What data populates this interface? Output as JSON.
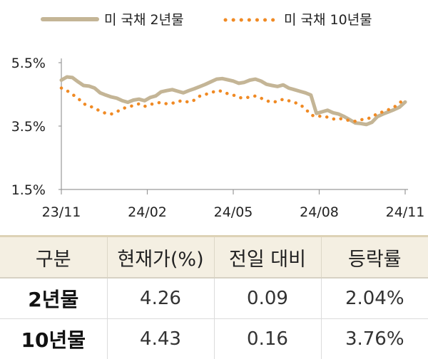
{
  "chart_data": {
    "type": "line",
    "title": "",
    "xlabel": "",
    "ylabel": "",
    "ylim": [
      1.5,
      5.5
    ],
    "yticks": [
      "1.5%",
      "3.5%",
      "5.5%"
    ],
    "xticks": [
      "23/11",
      "24/02",
      "24/05",
      "24/08",
      "24/11"
    ],
    "legend_position": "top",
    "grid": false,
    "series": [
      {
        "name": "미 국채 2년물",
        "color": "#c4b596",
        "style": "solid",
        "x": [
          0,
          2,
          4,
          6,
          8,
          10,
          12,
          14,
          16,
          18,
          20,
          22,
          24,
          26,
          28,
          30,
          32,
          34,
          36,
          38,
          40,
          42,
          44,
          46,
          48,
          50,
          52,
          54,
          56,
          58,
          60,
          62,
          64,
          66,
          68,
          70,
          72,
          74,
          76,
          78,
          80,
          82,
          84,
          86,
          88,
          90,
          92,
          94,
          96,
          98,
          100,
          102,
          104,
          106,
          108,
          110,
          112,
          114,
          116,
          118,
          120,
          122,
          124
        ],
        "values": [
          4.95,
          5.05,
          5.03,
          4.9,
          4.78,
          4.76,
          4.7,
          4.55,
          4.48,
          4.42,
          4.38,
          4.3,
          4.25,
          4.32,
          4.35,
          4.3,
          4.4,
          4.45,
          4.58,
          4.62,
          4.65,
          4.6,
          4.55,
          4.62,
          4.68,
          4.75,
          4.82,
          4.9,
          4.98,
          5.0,
          4.96,
          4.92,
          4.85,
          4.88,
          4.95,
          4.98,
          4.92,
          4.82,
          4.78,
          4.75,
          4.8,
          4.7,
          4.65,
          4.6,
          4.55,
          4.48,
          3.9,
          3.95,
          4.0,
          3.92,
          3.88,
          3.8,
          3.7,
          3.6,
          3.58,
          3.55,
          3.62,
          3.8,
          3.88,
          3.95,
          4.02,
          4.1,
          4.26
        ]
      },
      {
        "name": "미 국채 10년물",
        "color": "#f08a24",
        "style": "dotted",
        "x": [
          0,
          2,
          4,
          6,
          8,
          10,
          12,
          14,
          16,
          18,
          20,
          22,
          24,
          26,
          28,
          30,
          32,
          34,
          36,
          38,
          40,
          42,
          44,
          46,
          48,
          50,
          52,
          54,
          56,
          58,
          60,
          62,
          64,
          66,
          68,
          70,
          72,
          74,
          76,
          78,
          80,
          82,
          84,
          86,
          88,
          90,
          92,
          94,
          96,
          98,
          100,
          102,
          104,
          106,
          108,
          110,
          112,
          114,
          116,
          118,
          120,
          122,
          124
        ],
        "values": [
          4.7,
          4.62,
          4.5,
          4.38,
          4.2,
          4.15,
          4.05,
          3.98,
          3.9,
          3.88,
          3.95,
          4.05,
          4.1,
          4.15,
          4.2,
          4.12,
          4.18,
          4.22,
          4.25,
          4.2,
          4.22,
          4.28,
          4.3,
          4.25,
          4.32,
          4.45,
          4.5,
          4.55,
          4.62,
          4.6,
          4.52,
          4.48,
          4.4,
          4.38,
          4.42,
          4.45,
          4.38,
          4.3,
          4.25,
          4.28,
          4.35,
          4.3,
          4.25,
          4.18,
          4.05,
          3.85,
          3.8,
          3.82,
          3.78,
          3.72,
          3.75,
          3.7,
          3.68,
          3.65,
          3.7,
          3.72,
          3.78,
          3.9,
          3.95,
          4.02,
          4.1,
          4.22,
          4.43
        ]
      }
    ]
  },
  "table": {
    "headers": [
      "구분",
      "현재가(%)",
      "전일 대비",
      "등락률"
    ],
    "rows": [
      [
        "2년물",
        "4.26",
        "0.09",
        "2.04%"
      ],
      [
        "10년물",
        "4.43",
        "0.16",
        "3.76%"
      ]
    ]
  }
}
